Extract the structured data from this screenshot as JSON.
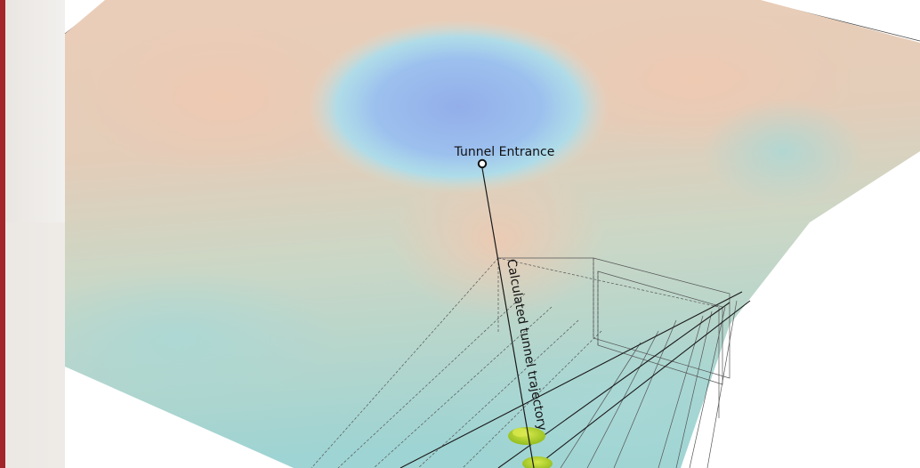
{
  "labels": {
    "entrance": "Tunnel Entrance",
    "trajectory": "Calculated tunnel trajectory"
  },
  "colors": {
    "accent_bar": "#a3262a",
    "terrain_high": "#e8cdb8",
    "terrain_mid": "#c9d6c6",
    "terrain_low": "#9ed3d2",
    "depression": "#8fb2ea",
    "line": "#1a1a1a",
    "vegetation": "#a8cc2a"
  },
  "icons": {
    "entrance_marker": "circle-marker-icon",
    "vegetation": "shrub-icon"
  }
}
